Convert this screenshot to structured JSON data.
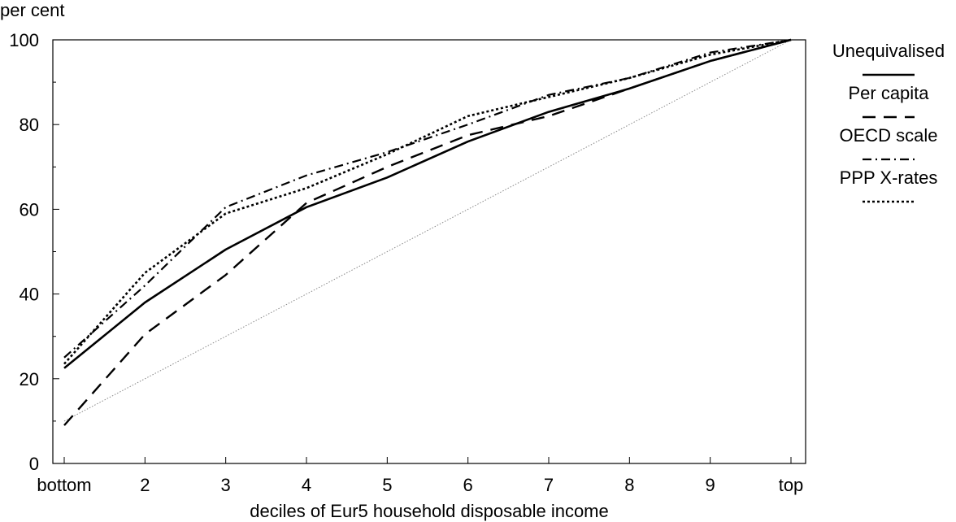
{
  "chart_data": {
    "type": "line",
    "title": "",
    "ylabel": "per cent",
    "xlabel": "deciles of Eur5 household disposable income",
    "categories": [
      "bottom",
      "2",
      "3",
      "4",
      "5",
      "6",
      "7",
      "8",
      "9",
      "top"
    ],
    "ylim": [
      0,
      100
    ],
    "yticks": [
      0,
      20,
      40,
      60,
      80,
      100
    ],
    "grid": false,
    "legend": "right",
    "series": [
      {
        "name": "Unequivalised",
        "style": "solid",
        "color": "#000000",
        "values": [
          22.5,
          38,
          50.5,
          60.5,
          67.5,
          76,
          83,
          88.5,
          95,
          100
        ]
      },
      {
        "name": "Per capita",
        "style": "dashed",
        "color": "#000000",
        "values": [
          9,
          30.5,
          44.5,
          61.5,
          70,
          77.5,
          82,
          88.5,
          95,
          100
        ]
      },
      {
        "name": "OECD scale",
        "style": "dash-dot",
        "color": "#000000",
        "values": [
          25,
          42,
          60.5,
          68,
          73.5,
          80,
          87,
          91,
          97,
          100
        ]
      },
      {
        "name": "PPP X-rates",
        "style": "dotted",
        "color": "#000000",
        "values": [
          23.5,
          45,
          59,
          65,
          73,
          82,
          86.5,
          91,
          96.5,
          100
        ]
      }
    ],
    "reference_line": {
      "values": [
        10,
        20,
        30,
        40,
        50,
        60,
        70,
        80,
        90,
        100
      ],
      "style": "thin-dotted",
      "color": "#888888"
    }
  }
}
